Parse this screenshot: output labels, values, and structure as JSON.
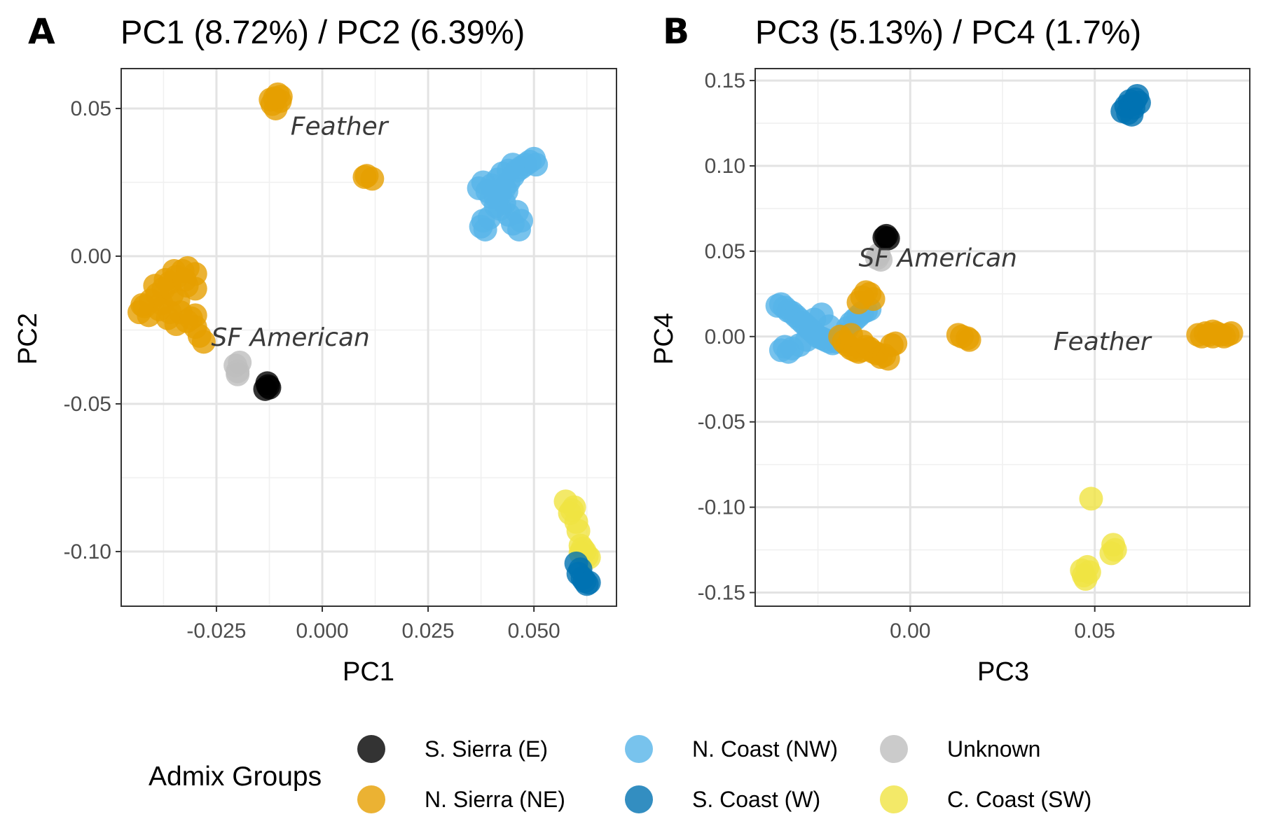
{
  "legend": {
    "title": "Admix Groups",
    "items": [
      {
        "key": "S_Sierra",
        "label": "S. Sierra (E)",
        "color": "#000000"
      },
      {
        "key": "N_Coast",
        "label": "N. Coast (NW)",
        "color": "#56B4E9"
      },
      {
        "key": "Unknown",
        "label": "Unknown",
        "color": "#BEBEBE"
      },
      {
        "key": "N_Sierra",
        "label": "N. Sierra (NE)",
        "color": "#E69F00"
      },
      {
        "key": "S_Coast",
        "label": "S. Coast (W)",
        "color": "#0072B2"
      },
      {
        "key": "C_Coast",
        "label": "C. Coast (SW)",
        "color": "#F0E442"
      }
    ]
  },
  "chart_data": [
    {
      "type": "scatter",
      "panel_letter": "A",
      "title": "PC1 (8.72%) / PC2 (6.39%)",
      "xlabel": "PC1",
      "ylabel": "PC2",
      "xlim": [
        -0.0475,
        0.0695
      ],
      "ylim": [
        -0.1185,
        0.0635
      ],
      "xticks": [
        -0.025,
        0.0,
        0.025,
        0.05
      ],
      "xtick_labels": [
        "-0.025",
        "0.000",
        "0.025",
        "0.050"
      ],
      "yticks": [
        0.05,
        0.0,
        -0.05,
        -0.1
      ],
      "ytick_labels": [
        "0.05",
        "0.00",
        "-0.05",
        "-0.10"
      ],
      "grid": true,
      "annotations": [
        {
          "text": "Feather",
          "x": 0.004,
          "y": 0.044
        },
        {
          "text": "SF American",
          "x": -0.0075,
          "y": -0.0275
        }
      ],
      "series": [
        {
          "group": "N_Sierra",
          "points": [
            [
              -0.0112,
              0.0535
            ],
            [
              -0.0105,
              0.0548
            ],
            [
              -0.0118,
              0.0515
            ],
            [
              -0.01,
              0.0525
            ],
            [
              -0.011,
              0.05
            ],
            [
              -0.0122,
              0.053
            ],
            [
              -0.0098,
              0.054
            ],
            [
              0.0105,
              0.0272
            ],
            [
              0.0118,
              0.0262
            ],
            [
              0.01,
              0.0268
            ],
            [
              -0.0432,
              -0.019
            ],
            [
              -0.042,
              -0.017
            ],
            [
              -0.0405,
              -0.015
            ],
            [
              -0.039,
              -0.013
            ],
            [
              -0.0375,
              -0.011
            ],
            [
              -0.036,
              -0.009
            ],
            [
              -0.0345,
              -0.007
            ],
            [
              -0.033,
              -0.005
            ],
            [
              -0.0318,
              -0.004
            ],
            [
              -0.041,
              -0.02
            ],
            [
              -0.038,
              -0.016
            ],
            [
              -0.0355,
              -0.013
            ],
            [
              -0.034,
              -0.015
            ],
            [
              -0.032,
              -0.01
            ],
            [
              -0.03,
              -0.011
            ],
            [
              -0.037,
              -0.008
            ],
            [
              -0.035,
              -0.005
            ],
            [
              -0.0335,
              -0.019
            ],
            [
              -0.032,
              -0.022
            ],
            [
              -0.0345,
              -0.023
            ],
            [
              -0.031,
              -0.021
            ],
            [
              -0.03,
              -0.024
            ],
            [
              -0.029,
              -0.027
            ],
            [
              -0.028,
              -0.029
            ],
            [
              -0.03,
              -0.02
            ],
            [
              -0.036,
              -0.019
            ],
            [
              -0.0395,
              -0.01
            ],
            [
              -0.0385,
              -0.018
            ],
            [
              -0.0365,
              -0.021
            ],
            [
              -0.03,
              -0.006
            ],
            [
              -0.0325,
              -0.008
            ],
            [
              -0.0425,
              -0.0165
            ]
          ]
        },
        {
          "group": "N_Coast",
          "points": [
            [
              0.037,
              0.023
            ],
            [
              0.038,
              0.025
            ],
            [
              0.039,
              0.022
            ],
            [
              0.04,
              0.024
            ],
            [
              0.041,
              0.02
            ],
            [
              0.042,
              0.021
            ],
            [
              0.043,
              0.023
            ],
            [
              0.044,
              0.025
            ],
            [
              0.045,
              0.027
            ],
            [
              0.046,
              0.029
            ],
            [
              0.047,
              0.03
            ],
            [
              0.048,
              0.031
            ],
            [
              0.049,
              0.032
            ],
            [
              0.05,
              0.033
            ],
            [
              0.0505,
              0.031
            ],
            [
              0.045,
              0.031
            ],
            [
              0.044,
              0.029
            ],
            [
              0.043,
              0.018
            ],
            [
              0.042,
              0.016
            ],
            [
              0.044,
              0.014
            ],
            [
              0.046,
              0.015
            ],
            [
              0.047,
              0.012
            ],
            [
              0.0465,
              0.009
            ],
            [
              0.045,
              0.011
            ],
            [
              0.038,
              0.012
            ],
            [
              0.0385,
              0.009
            ],
            [
              0.0375,
              0.01
            ],
            [
              0.0395,
              0.013
            ],
            [
              0.041,
              0.017
            ],
            [
              0.0415,
              0.026
            ],
            [
              0.04,
              0.02
            ],
            [
              0.0425,
              0.028
            ],
            [
              0.0435,
              0.022
            ]
          ]
        },
        {
          "group": "Unknown",
          "points": [
            [
              -0.0205,
              -0.037
            ],
            [
              -0.02,
              -0.039
            ],
            [
              -0.0195,
              -0.036
            ],
            [
              -0.02,
              -0.04
            ]
          ]
        },
        {
          "group": "S_Sierra",
          "points": [
            [
              -0.013,
              -0.043
            ],
            [
              -0.0125,
              -0.0445
            ],
            [
              -0.0135,
              -0.045
            ],
            [
              -0.0128,
              -0.044
            ]
          ]
        },
        {
          "group": "C_Coast",
          "points": [
            [
              0.0575,
              -0.083
            ],
            [
              0.0585,
              -0.087
            ],
            [
              0.0595,
              -0.085
            ],
            [
              0.06,
              -0.09
            ],
            [
              0.0605,
              -0.093
            ],
            [
              0.061,
              -0.098
            ],
            [
              0.0615,
              -0.099
            ],
            [
              0.062,
              -0.1
            ],
            [
              0.0625,
              -0.1015
            ],
            [
              0.063,
              -0.102
            ],
            [
              0.059,
              -0.086
            ],
            [
              0.061,
              -0.1005
            ]
          ]
        },
        {
          "group": "S_Coast",
          "points": [
            [
              0.06,
              -0.104
            ],
            [
              0.061,
              -0.106
            ],
            [
              0.0615,
              -0.109
            ],
            [
              0.062,
              -0.11
            ],
            [
              0.0625,
              -0.111
            ],
            [
              0.0605,
              -0.1075
            ],
            [
              0.063,
              -0.1105
            ]
          ]
        }
      ]
    },
    {
      "type": "scatter",
      "panel_letter": "B",
      "title": "PC3 (5.13%) / PC4 (1.7%)",
      "xlabel": "PC3",
      "ylabel": "PC4",
      "xlim": [
        -0.042,
        0.092
      ],
      "ylim": [
        -0.158,
        0.157
      ],
      "xticks": [
        0.0,
        0.05
      ],
      "xtick_labels": [
        "0.00",
        "0.05"
      ],
      "yticks": [
        0.15,
        0.1,
        0.05,
        0.0,
        -0.05,
        -0.1,
        -0.15
      ],
      "ytick_labels": [
        "0.15",
        "0.10",
        "0.05",
        "0.00",
        "-0.05",
        "-0.10",
        "-0.15"
      ],
      "grid": true,
      "annotations": [
        {
          "text": "SF American",
          "x": 0.0075,
          "y": 0.046
        },
        {
          "text": "Feather",
          "x": 0.052,
          "y": -0.003
        }
      ],
      "series": [
        {
          "group": "N_Coast",
          "points": [
            [
              -0.036,
              0.018
            ],
            [
              -0.035,
              0.019
            ],
            [
              -0.034,
              0.017
            ],
            [
              -0.033,
              0.015
            ],
            [
              -0.032,
              0.014
            ],
            [
              -0.031,
              0.012
            ],
            [
              -0.03,
              0.01
            ],
            [
              -0.029,
              0.008
            ],
            [
              -0.028,
              0.006
            ],
            [
              -0.027,
              0.004
            ],
            [
              -0.026,
              0.002
            ],
            [
              -0.025,
              0.0
            ],
            [
              -0.024,
              -0.001
            ],
            [
              -0.023,
              -0.002
            ],
            [
              -0.022,
              -0.003
            ],
            [
              -0.021,
              -0.004
            ],
            [
              -0.02,
              -0.003
            ],
            [
              -0.019,
              -0.001
            ],
            [
              -0.018,
              0.001
            ],
            [
              -0.017,
              0.005
            ],
            [
              -0.016,
              0.008
            ],
            [
              -0.015,
              0.01
            ],
            [
              -0.014,
              0.012
            ],
            [
              -0.013,
              0.014
            ],
            [
              -0.012,
              0.015
            ],
            [
              -0.011,
              0.016
            ],
            [
              -0.034,
              -0.006
            ],
            [
              -0.033,
              -0.009
            ],
            [
              -0.032,
              -0.007
            ],
            [
              -0.03,
              -0.005
            ],
            [
              -0.035,
              -0.008
            ],
            [
              -0.028,
              -0.002
            ],
            [
              -0.026,
              0.01
            ],
            [
              -0.024,
              0.013
            ],
            [
              -0.022,
              0.006
            ]
          ]
        },
        {
          "group": "N_Sierra",
          "points": [
            [
              -0.012,
              0.026
            ],
            [
              -0.011,
              0.025
            ],
            [
              -0.013,
              0.023
            ],
            [
              -0.01,
              0.022
            ],
            [
              -0.014,
              0.02
            ],
            [
              -0.019,
              0.0
            ],
            [
              -0.018,
              -0.003
            ],
            [
              -0.017,
              -0.005
            ],
            [
              -0.016,
              -0.007
            ],
            [
              -0.015,
              -0.008
            ],
            [
              -0.014,
              -0.009
            ],
            [
              -0.013,
              -0.008
            ],
            [
              -0.012,
              -0.006
            ],
            [
              -0.011,
              -0.007
            ],
            [
              -0.01,
              -0.009
            ],
            [
              -0.009,
              -0.01
            ],
            [
              -0.008,
              -0.012
            ],
            [
              -0.007,
              -0.011
            ],
            [
              -0.006,
              -0.013
            ],
            [
              -0.005,
              -0.005
            ],
            [
              -0.004,
              -0.004
            ],
            [
              -0.016,
              0.001
            ],
            [
              -0.013,
              -0.003
            ],
            [
              0.013,
              0.001
            ],
            [
              0.014,
              0.0
            ],
            [
              0.0155,
              -0.001
            ],
            [
              0.016,
              -0.002
            ],
            [
              0.078,
              0.001
            ],
            [
              0.079,
              0.0
            ],
            [
              0.08,
              0.002
            ],
            [
              0.081,
              0.001
            ],
            [
              0.082,
              0.0
            ],
            [
              0.083,
              0.002
            ],
            [
              0.084,
              0.001
            ],
            [
              0.085,
              0.0
            ],
            [
              0.086,
              0.001
            ],
            [
              0.087,
              0.002
            ],
            [
              0.082,
              0.003
            ]
          ]
        },
        {
          "group": "Unknown",
          "points": [
            [
              -0.0085,
              0.048
            ],
            [
              -0.008,
              0.045
            ],
            [
              -0.009,
              0.046
            ]
          ]
        },
        {
          "group": "S_Sierra",
          "points": [
            [
              -0.007,
              0.058
            ],
            [
              -0.0065,
              0.059
            ],
            [
              -0.006,
              0.0575
            ]
          ]
        },
        {
          "group": "S_Coast",
          "points": [
            [
              0.0575,
              0.132
            ],
            [
              0.0585,
              0.135
            ],
            [
              0.0595,
              0.138
            ],
            [
              0.06,
              0.136
            ],
            [
              0.0605,
              0.134
            ],
            [
              0.061,
              0.139
            ],
            [
              0.0615,
              0.141
            ],
            [
              0.06,
              0.13
            ],
            [
              0.059,
              0.131
            ],
            [
              0.062,
              0.137
            ]
          ]
        },
        {
          "group": "C_Coast",
          "points": [
            [
              0.049,
              -0.095
            ],
            [
              0.055,
              -0.122
            ],
            [
              0.0555,
              -0.125
            ],
            [
              0.0545,
              -0.127
            ],
            [
              0.0465,
              -0.137
            ],
            [
              0.047,
              -0.14
            ],
            [
              0.0475,
              -0.142
            ],
            [
              0.048,
              -0.135
            ],
            [
              0.0485,
              -0.138
            ]
          ]
        }
      ]
    }
  ]
}
